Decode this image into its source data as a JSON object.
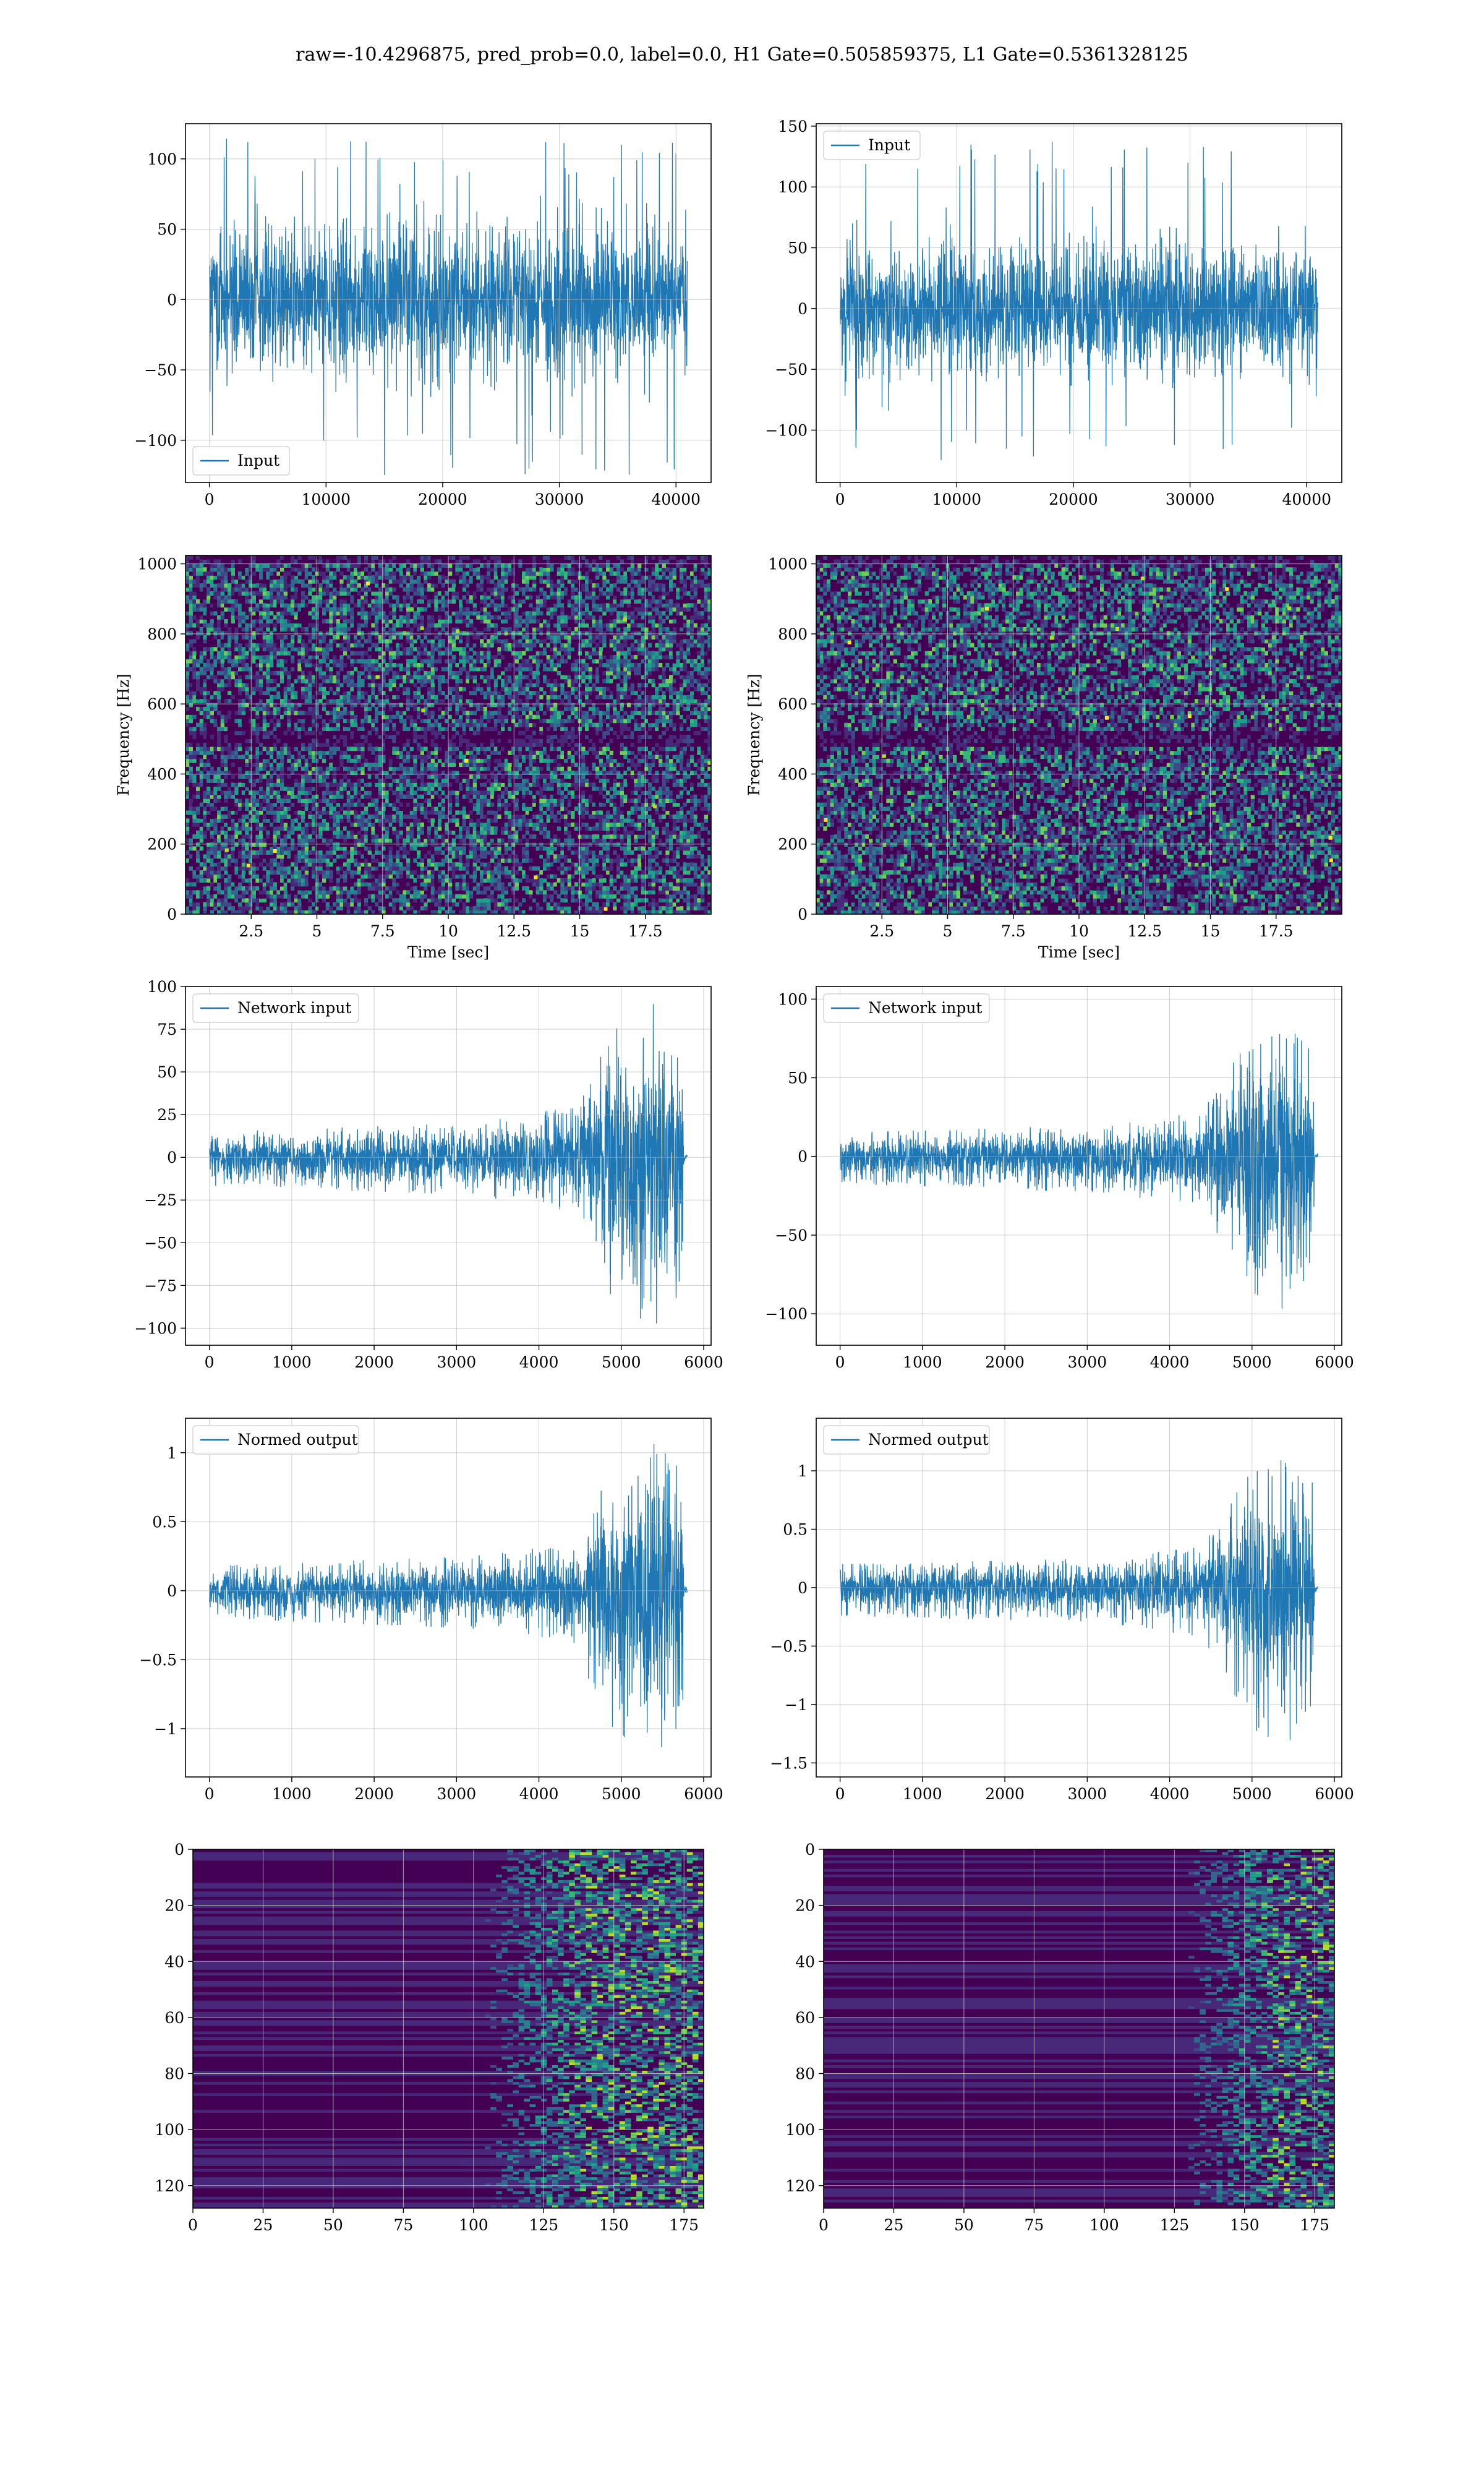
{
  "figure": {
    "suptitle": "raw=-10.4296875, pred_prob=0.0, label=0.0, H1 Gate=0.505859375, L1 Gate=0.5361328125"
  },
  "colors": {
    "line": "#1f77b4",
    "grid": "#b0b0b0",
    "viridis": [
      "#440154",
      "#482878",
      "#3e4989",
      "#31688e",
      "#26828e",
      "#1f9e89",
      "#35b779",
      "#6ece58",
      "#b5de2b",
      "#fde725"
    ]
  },
  "chart_data": [
    {
      "id": "h1-input",
      "type": "line",
      "grid": true,
      "legend": {
        "position": "lower-left",
        "entries": [
          "Input"
        ]
      },
      "series": [
        {
          "name": "Input",
          "x_range": [
            0,
            40960
          ],
          "envelope": {
            "core": [
              -60,
              60
            ],
            "peaks": [
              -125,
              115
            ]
          }
        }
      ],
      "xlim": [
        -2048,
        43008
      ],
      "ylim": [
        -130,
        125
      ],
      "xticks": [
        0,
        10000,
        20000,
        30000,
        40000
      ],
      "yticks": [
        -100,
        -50,
        0,
        50,
        100
      ]
    },
    {
      "id": "l1-input",
      "type": "line",
      "grid": true,
      "legend": {
        "position": "upper-left",
        "entries": [
          "Input"
        ]
      },
      "series": [
        {
          "name": "Input",
          "x_range": [
            0,
            40960
          ],
          "envelope": {
            "core": [
              -60,
              60
            ],
            "peaks": [
              -128,
              138
            ]
          }
        }
      ],
      "xlim": [
        -2048,
        43008
      ],
      "ylim": [
        -143,
        152
      ],
      "xticks": [
        0,
        10000,
        20000,
        30000,
        40000
      ],
      "yticks": [
        -100,
        -50,
        0,
        50,
        100,
        150
      ]
    },
    {
      "id": "h1-spectrogram",
      "type": "heatmap",
      "grid": true,
      "xlabel": "Time [sec]",
      "ylabel": "Frequency [Hz]",
      "xlim": [
        0,
        20
      ],
      "ylim": [
        0,
        1024
      ],
      "xticks": [
        2.5,
        5.0,
        7.5,
        10.0,
        12.5,
        15.0,
        17.5
      ],
      "yticks": [
        0,
        200,
        400,
        600,
        800,
        1000
      ],
      "pattern": "random noise, dark band near 500 Hz and near 1000 Hz"
    },
    {
      "id": "l1-spectrogram",
      "type": "heatmap",
      "grid": true,
      "xlabel": "Time [sec]",
      "ylabel": "Frequency [Hz]",
      "xlim": [
        0,
        20
      ],
      "ylim": [
        0,
        1024
      ],
      "xticks": [
        2.5,
        5.0,
        7.5,
        10.0,
        12.5,
        15.0,
        17.5
      ],
      "yticks": [
        0,
        200,
        400,
        600,
        800,
        1000
      ],
      "pattern": "random noise, dark band near 500 Hz and near 1000 Hz"
    },
    {
      "id": "h1-network-input",
      "type": "line",
      "grid": true,
      "legend": {
        "position": "upper-left",
        "entries": [
          "Network input"
        ]
      },
      "series": [
        {
          "name": "Network input",
          "x_range": [
            0,
            5800
          ],
          "envelope_points": [
            [
              0,
              15
            ],
            [
              3200,
              20
            ],
            [
              4500,
              30
            ],
            [
              4700,
              70
            ],
            [
              5000,
              80
            ],
            [
              5400,
              90
            ],
            [
              5750,
              70
            ],
            [
              5760,
              3
            ],
            [
              5800,
              2
            ]
          ],
          "neg_scale": 1.1
        }
      ],
      "xlim": [
        -290,
        6090
      ],
      "ylim": [
        -110,
        100
      ],
      "xticks": [
        0,
        1000,
        2000,
        3000,
        4000,
        5000,
        6000
      ],
      "yticks": [
        -100,
        -75,
        -50,
        -25,
        0,
        25,
        50,
        75,
        100
      ]
    },
    {
      "id": "l1-network-input",
      "type": "line",
      "grid": true,
      "legend": {
        "position": "upper-left",
        "entries": [
          "Network input"
        ]
      },
      "series": [
        {
          "name": "Network input",
          "x_range": [
            0,
            5800
          ],
          "envelope_points": [
            [
              0,
              15
            ],
            [
              3200,
              20
            ],
            [
              4400,
              28
            ],
            [
              4700,
              55
            ],
            [
              5000,
              75
            ],
            [
              5400,
              85
            ],
            [
              5750,
              65
            ],
            [
              5760,
              3
            ],
            [
              5800,
              2
            ]
          ],
          "neg_scale": 1.15
        }
      ],
      "xlim": [
        -290,
        6090
      ],
      "ylim": [
        -120,
        108
      ],
      "xticks": [
        0,
        1000,
        2000,
        3000,
        4000,
        5000,
        6000
      ],
      "yticks": [
        -100,
        -50,
        0,
        50,
        100
      ]
    },
    {
      "id": "h1-normed-output",
      "type": "line",
      "grid": true,
      "legend": {
        "position": "upper-left",
        "entries": [
          "Normed output"
        ]
      },
      "series": [
        {
          "name": "Normed output",
          "x_range": [
            0,
            5800
          ],
          "envelope_points": [
            [
              0,
              0.18
            ],
            [
              3200,
              0.25
            ],
            [
              4500,
              0.35
            ],
            [
              4700,
              0.8
            ],
            [
              5000,
              0.95
            ],
            [
              5400,
              1.1
            ],
            [
              5750,
              0.85
            ],
            [
              5760,
              0.04
            ],
            [
              5800,
              0.03
            ]
          ],
          "neg_scale": 1.1
        }
      ],
      "xlim": [
        -290,
        6090
      ],
      "ylim": [
        -1.35,
        1.25
      ],
      "xticks": [
        0,
        1000,
        2000,
        3000,
        4000,
        5000,
        6000
      ],
      "yticks": [
        -1.0,
        -0.5,
        0.0,
        0.5,
        1.0
      ]
    },
    {
      "id": "l1-normed-output",
      "type": "line",
      "grid": true,
      "legend": {
        "position": "upper-left",
        "entries": [
          "Normed output"
        ]
      },
      "series": [
        {
          "name": "Normed output",
          "x_range": [
            0,
            5800
          ],
          "envelope_points": [
            [
              0,
              0.2
            ],
            [
              3200,
              0.25
            ],
            [
              4400,
              0.35
            ],
            [
              4700,
              0.7
            ],
            [
              5000,
              1.0
            ],
            [
              5400,
              1.15
            ],
            [
              5750,
              0.9
            ],
            [
              5760,
              0.04
            ],
            [
              5800,
              0.03
            ]
          ],
          "neg_scale": 1.2
        }
      ],
      "xlim": [
        -290,
        6090
      ],
      "ylim": [
        -1.62,
        1.45
      ],
      "xticks": [
        0,
        1000,
        2000,
        3000,
        4000,
        5000,
        6000
      ],
      "yticks": [
        -1.5,
        -1.0,
        -0.5,
        0.0,
        0.5,
        1.0
      ]
    },
    {
      "id": "h1-feature-map",
      "type": "heatmap",
      "grid": true,
      "y_inverted": true,
      "xlim": [
        0,
        182
      ],
      "ylim": [
        128,
        0
      ],
      "xticks": [
        0,
        25,
        50,
        75,
        100,
        125,
        150,
        175
      ],
      "yticks": [
        0,
        20,
        40,
        60,
        80,
        100,
        120
      ],
      "activity_starts_at_x": 100
    },
    {
      "id": "l1-feature-map",
      "type": "heatmap",
      "grid": true,
      "y_inverted": true,
      "xlim": [
        0,
        182
      ],
      "ylim": [
        128,
        0
      ],
      "xticks": [
        0,
        25,
        50,
        75,
        100,
        125,
        150,
        175
      ],
      "yticks": [
        0,
        20,
        40,
        60,
        80,
        100,
        120
      ],
      "activity_starts_at_x": 125
    }
  ]
}
